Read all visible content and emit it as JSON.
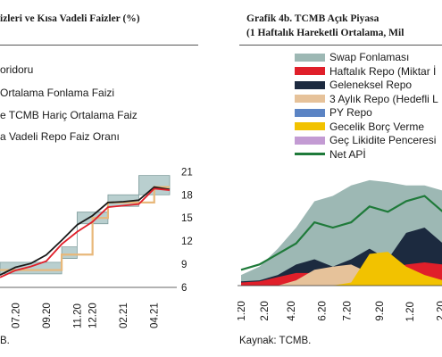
{
  "left_chart": {
    "title": "izleri ve Kısa Vadeli Faizler (%)",
    "legend": [
      {
        "label": "oridoru"
      },
      {
        "label": "Ortalama Fonlama Faizi"
      },
      {
        "label": "e TCMB Hariç Ortalama Faiz"
      },
      {
        "label": "a Vadeli Repo Faiz Oranı"
      }
    ],
    "source": "B.",
    "colors": {
      "corridor": "#b9cfcf",
      "funding": "#e8b87a",
      "repo": "#e01f2a",
      "other": "#1a1a1a"
    }
  },
  "right_chart": {
    "title_line1": "Grafik  4b.  TCMB  Açık  Piyasa",
    "title_line2": "(1 Haftalık Hareketli Ortalama, Mil",
    "legend": [
      {
        "label": "Swap Fonlaması",
        "color": "#9db8b4",
        "kind": "box"
      },
      {
        "label": "Haftalık Repo (Miktar İ",
        "color": "#e01f2a",
        "kind": "box"
      },
      {
        "label": "Geleneksel Repo",
        "color": "#1c2a3f",
        "kind": "box"
      },
      {
        "label": "3 Aylık Repo (Hedefli L",
        "color": "#e6c29a",
        "kind": "box"
      },
      {
        "label": "PY Repo",
        "color": "#5b84c4",
        "kind": "box"
      },
      {
        "label": "Gecelik Borç Verme",
        "color": "#f2c200",
        "kind": "box"
      },
      {
        "label": "Geç Likidite Penceresi",
        "color": "#c39bd3",
        "kind": "box"
      },
      {
        "label": "Net APİ",
        "color": "#1f7a3a",
        "kind": "line"
      }
    ],
    "source": "Kaynak: TCMB."
  },
  "chart_data": [
    {
      "type": "line",
      "title": "izleri ve Kısa Vadeli Faizler (%)",
      "x": [
        "06.20",
        "07.20",
        "08.20",
        "09.20",
        "10.20",
        "11.20",
        "12.20",
        "01.21",
        "02.21",
        "03.21",
        "04.21",
        "05.21"
      ],
      "x_tick_labels": [
        "07.20",
        "09.20",
        "11.20",
        "12.20",
        "02.21",
        "04.21"
      ],
      "y_ticks": [
        6,
        9,
        12,
        15,
        18,
        21
      ],
      "ylim": [
        6,
        21.5
      ],
      "axis_side": "right",
      "series": [
        {
          "name": "oridoru",
          "kind": "band",
          "lower": [
            7.75,
            7.75,
            7.75,
            7.75,
            9.75,
            14.25,
            14.25,
            16.5,
            16.5,
            18.0,
            18.0,
            18.0
          ],
          "upper": [
            9.25,
            9.25,
            9.25,
            9.25,
            11.25,
            15.75,
            15.75,
            18.0,
            18.0,
            20.5,
            20.5,
            20.5
          ]
        },
        {
          "name": "Ortalama Fonlama Faizi",
          "values": [
            8.25,
            8.25,
            8.25,
            8.25,
            10.25,
            10.25,
            15.0,
            17.0,
            17.0,
            17.0,
            19.0,
            19.0
          ]
        },
        {
          "name": "e TCMB Hariç Ortalama Faiz",
          "values": [
            7.6,
            8.6,
            9.1,
            10.2,
            12.1,
            14.1,
            15.3,
            17.0,
            17.1,
            17.3,
            19.0,
            18.7
          ]
        },
        {
          "name": "a Vadeli Repo Faiz Oranı",
          "values": [
            7.3,
            8.2,
            8.7,
            9.4,
            11.6,
            13.2,
            14.5,
            16.4,
            16.6,
            16.8,
            18.8,
            18.6
          ]
        }
      ]
    },
    {
      "type": "area",
      "title": "Grafik  4b.  TCMB  Açık  Piyasa (1 Haftalık Hareketli Ortalama, Mil",
      "x": [
        "01.20",
        "02.20",
        "03.20",
        "04.20",
        "05.20",
        "06.20",
        "07.20",
        "08.20",
        "09.20",
        "10.20",
        "11.20",
        "12.20"
      ],
      "x_tick_labels": [
        "01.20",
        "02.20",
        "04.20",
        "06.20",
        "07.20",
        "09.20",
        "11.20",
        "12.20"
      ],
      "series": [
        {
          "name": "PY Repo",
          "values": [
            0,
            0,
            0,
            0,
            0,
            0,
            0,
            0,
            0,
            0,
            0,
            0
          ]
        },
        {
          "name": "Gecelik Borç Verme",
          "values": [
            0,
            0,
            0,
            0,
            0,
            0,
            3,
            30,
            32,
            18,
            10,
            5
          ]
        },
        {
          "name": "Geç Likidite Penceresi",
          "values": [
            0,
            0,
            0,
            0,
            0,
            0,
            0,
            0,
            5,
            3,
            2,
            1
          ]
        },
        {
          "name": "3 Aylık Repo (Hedefli L",
          "values": [
            0,
            0,
            0,
            5,
            15,
            18,
            20,
            12,
            10,
            8,
            8,
            5
          ]
        },
        {
          "name": "Haftalık Repo (Miktar İ",
          "values": [
            3,
            4,
            8,
            12,
            12,
            10,
            8,
            10,
            15,
            20,
            22,
            20
          ]
        },
        {
          "name": "Geleneksel Repo",
          "values": [
            4,
            5,
            10,
            20,
            25,
            18,
            25,
            35,
            25,
            50,
            55,
            40
          ]
        },
        {
          "name": "Swap Fonlaması",
          "values": [
            10,
            18,
            35,
            55,
            80,
            85,
            95,
            100,
            98,
            95,
            95,
            90
          ]
        },
        {
          "name": "Net APİ",
          "values": [
            15,
            20,
            30,
            40,
            60,
            55,
            60,
            75,
            70,
            80,
            85,
            70
          ]
        }
      ]
    }
  ]
}
